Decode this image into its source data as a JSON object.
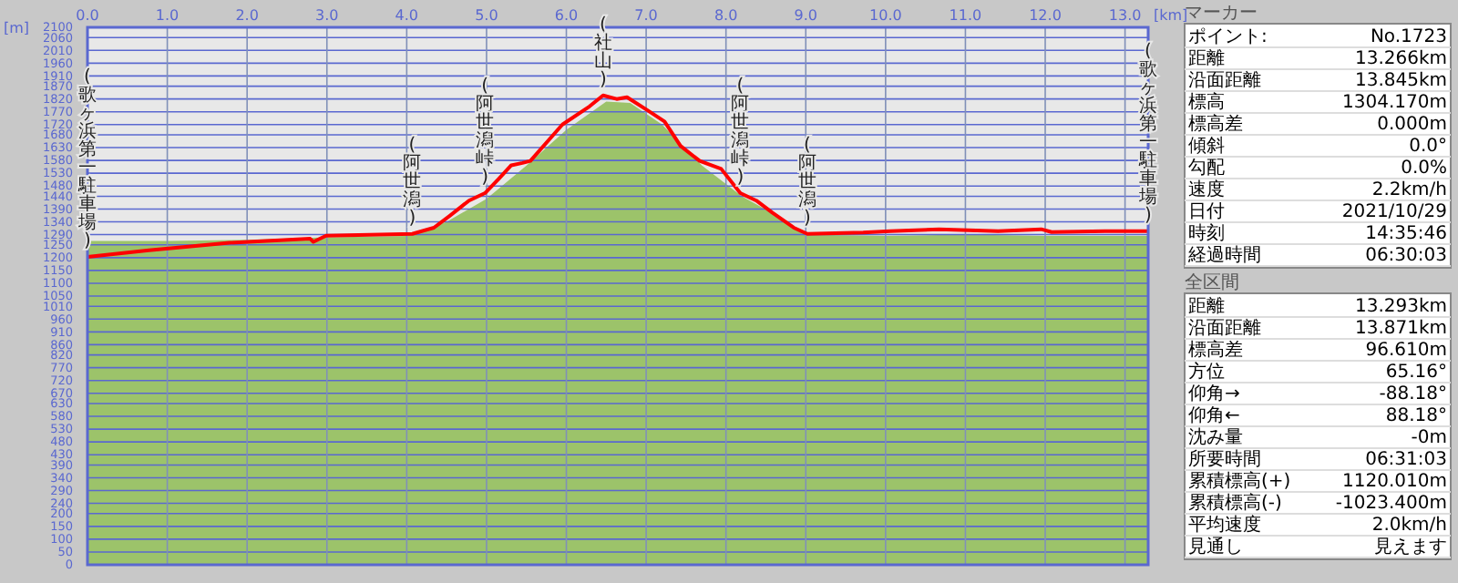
{
  "chart_data": [
    {
      "type": "line",
      "xlabel": "[km]",
      "ylabel": "[m]",
      "xlim": [
        0,
        13.29
      ],
      "ylim": [
        0,
        2100
      ],
      "xticks": [
        {
          "value": 0,
          "label": "0.0"
        },
        {
          "value": 1,
          "label": "1.0"
        },
        {
          "value": 2,
          "label": "2.0"
        },
        {
          "value": 3,
          "label": "3.0"
        },
        {
          "value": 4,
          "label": "4.0"
        },
        {
          "value": 5,
          "label": "5.0"
        },
        {
          "value": 6,
          "label": "6.0"
        },
        {
          "value": 7,
          "label": "7.0"
        },
        {
          "value": 8,
          "label": "8.0"
        },
        {
          "value": 9,
          "label": "9.0"
        },
        {
          "value": 10,
          "label": "10.0"
        },
        {
          "value": 11,
          "label": "11.0"
        },
        {
          "value": 12,
          "label": "12.0"
        },
        {
          "value": 13,
          "label": "13.0"
        }
      ],
      "yticks": [
        0,
        50,
        100,
        150,
        200,
        240,
        290,
        340,
        390,
        430,
        480,
        530,
        580,
        630,
        670,
        720,
        770,
        820,
        860,
        910,
        960,
        1010,
        1050,
        1100,
        1150,
        1200,
        1250,
        1290,
        1340,
        1390,
        1440,
        1480,
        1530,
        1580,
        1630,
        1680,
        1720,
        1770,
        1820,
        1870,
        1910,
        1960,
        2010,
        2060,
        2100
      ],
      "grid": true,
      "series": [
        {
          "type": "area",
          "color": "#9cc36a",
          "x": [
            0,
            1,
            2,
            3,
            4,
            4.5,
            5,
            5.5,
            6,
            6.5,
            6.8,
            7.2,
            7.7,
            8.2,
            8.6,
            9,
            10,
            11,
            12,
            13.29
          ],
          "values": [
            1265,
            1265,
            1270,
            1280,
            1285,
            1340,
            1430,
            1560,
            1700,
            1810,
            1805,
            1720,
            1560,
            1440,
            1370,
            1290,
            1285,
            1290,
            1285,
            1285
          ]
        },
        {
          "type": "line",
          "color": "#ff0000",
          "x": [
            0,
            0.77,
            1.78,
            2.79,
            2.83,
            2.99,
            4.07,
            4.34,
            4.54,
            4.78,
            4.98,
            5.15,
            5.31,
            5.45,
            5.55,
            5.95,
            6.29,
            6.46,
            6.63,
            6.76,
            7.0,
            7.23,
            7.43,
            7.67,
            7.94,
            8.18,
            8.38,
            8.58,
            8.85,
            9.02,
            9.72,
            10.06,
            10.67,
            11.41,
            11.95,
            12.08,
            12.75,
            13.29
          ],
          "values": [
            1203,
            1229,
            1258,
            1274,
            1262,
            1286,
            1293,
            1317,
            1364,
            1423,
            1452,
            1507,
            1561,
            1570,
            1578,
            1720,
            1791,
            1834,
            1820,
            1827,
            1779,
            1732,
            1637,
            1578,
            1547,
            1452,
            1423,
            1376,
            1317,
            1293,
            1298,
            1304,
            1311,
            1304,
            1311,
            1300,
            1304,
            1304
          ]
        }
      ],
      "annotations": [
        "(歌ヶ浜第一駐車場)",
        {
          "text": "(阿世潟)",
          "x": 4.07,
          "y": 1293
        },
        {
          "text": "(阿世潟峠)",
          "x": 4.98,
          "y": 1452
        },
        {
          "text": "(社山)",
          "x": 6.46,
          "y": 1834
        },
        {
          "text": "(阿世潟峠)",
          "x": 8.18,
          "y": 1452
        },
        {
          "text": "(阿世潟)",
          "x": 9.02,
          "y": 1293
        },
        "(歌ヶ浜第一駐車場)"
      ]
    },
    {
      "type": "other",
      "title": "マーカー",
      "annotations": [
        "ポイント:",
        "No.1723",
        "距離",
        "13.266km",
        "沿面距離",
        "13.845km",
        "標高",
        "1304.170m",
        "標高差",
        "0.000m",
        "傾斜",
        "0.0°",
        "勾配",
        "0.0%",
        "速度",
        "2.2km/h",
        "日付",
        "2021/10/29",
        "時刻",
        "14:35:46",
        "経過時間",
        "06:30:03"
      ]
    },
    {
      "type": "other",
      "title": "全区間",
      "annotations": [
        "距離",
        "13.293km",
        "沿面距離",
        "13.871km",
        "標高差",
        "96.610m",
        "方位",
        "65.16°",
        "仰角→",
        "-88.18°",
        "仰角←",
        "88.18°",
        "沈み量",
        "-0m",
        "所要時間",
        "06:31:03",
        "累積標高(+)",
        "1120.010m",
        "累積標高(-)",
        "-1023.400m",
        "平均速度",
        "2.0km/h",
        "見通し",
        "見えます"
      ]
    }
  ]
}
